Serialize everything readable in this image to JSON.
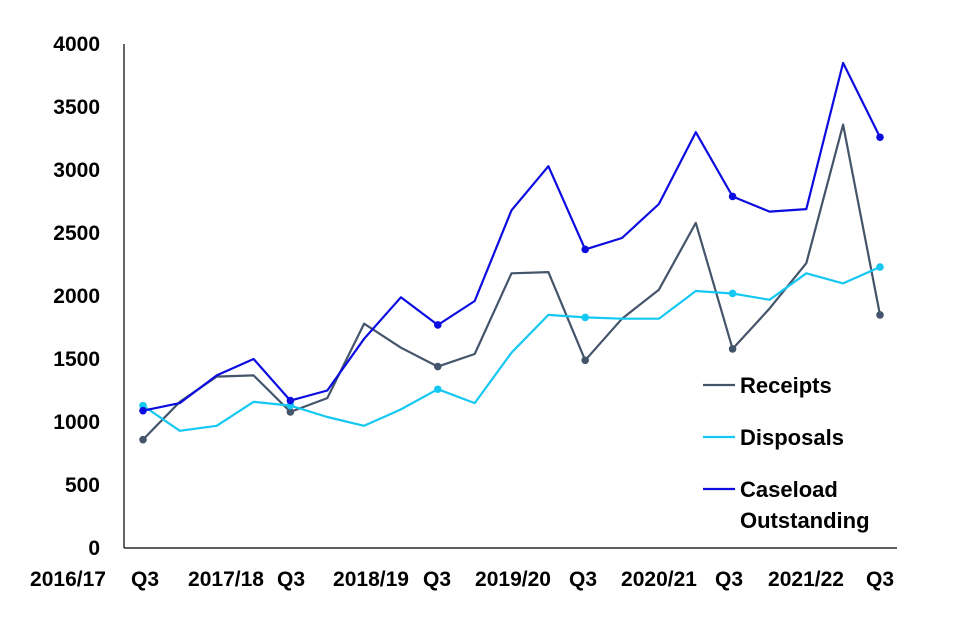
{
  "chart_data": {
    "type": "line",
    "title": "",
    "xlabel": "",
    "ylabel": "",
    "ylim": [
      0,
      4000
    ],
    "yticks": [
      "0",
      "500",
      "1000",
      "1500",
      "2000",
      "2500",
      "3000",
      "3500",
      "4000"
    ],
    "grid": false,
    "legend_position": "right",
    "x": [
      "2016/17 Q3",
      "2016/17 Q4",
      "2017/18 Q1",
      "2017/18 Q2",
      "2017/18 Q3",
      "2017/18 Q4",
      "2018/19 Q1",
      "2018/19 Q2",
      "2018/19 Q3",
      "2018/19 Q4",
      "2019/20 Q1",
      "2019/20 Q2",
      "2019/20 Q3",
      "2019/20 Q4",
      "2020/21 Q1",
      "2020/21 Q2",
      "2020/21 Q3",
      "2020/21 Q4",
      "2021/22 Q1",
      "2021/22 Q2",
      "2021/22 Q3"
    ],
    "xtick_labels": [
      "2016/17",
      "Q3",
      "2017/18",
      "Q3",
      "2018/19",
      "Q3",
      "2019/20",
      "Q3",
      "2020/21",
      "Q3",
      "2021/22",
      "Q3"
    ],
    "series": [
      {
        "name": "Receipts",
        "color": "#44546a",
        "values": [
          860,
          1160,
          1360,
          1370,
          1080,
          1190,
          1780,
          1590,
          1440,
          1540,
          2180,
          2190,
          1490,
          1820,
          2050,
          2580,
          1580,
          1900,
          2260,
          3360,
          1850
        ],
        "markers": [
          0,
          4,
          8,
          12,
          16,
          20
        ]
      },
      {
        "name": "Disposals",
        "color": "#15c8f2",
        "values": [
          1130,
          930,
          970,
          1160,
          1130,
          1040,
          970,
          1100,
          1260,
          1150,
          1550,
          1850,
          1830,
          1820,
          1820,
          2040,
          2020,
          1970,
          2180,
          2100,
          2230
        ],
        "markers": [
          0,
          4,
          8,
          12,
          16,
          20
        ]
      },
      {
        "name": "Caseload Outstanding",
        "legend_lines": [
          "Caseload",
          "Outstanding"
        ],
        "color": "#0c0ce0",
        "values": [
          1090,
          1150,
          1370,
          1500,
          1170,
          1250,
          1660,
          1990,
          1770,
          1960,
          2680,
          3030,
          2370,
          2460,
          2730,
          3300,
          2790,
          2670,
          2690,
          3850,
          3260
        ],
        "markers": [
          0,
          4,
          8,
          12,
          16,
          20
        ]
      }
    ]
  }
}
